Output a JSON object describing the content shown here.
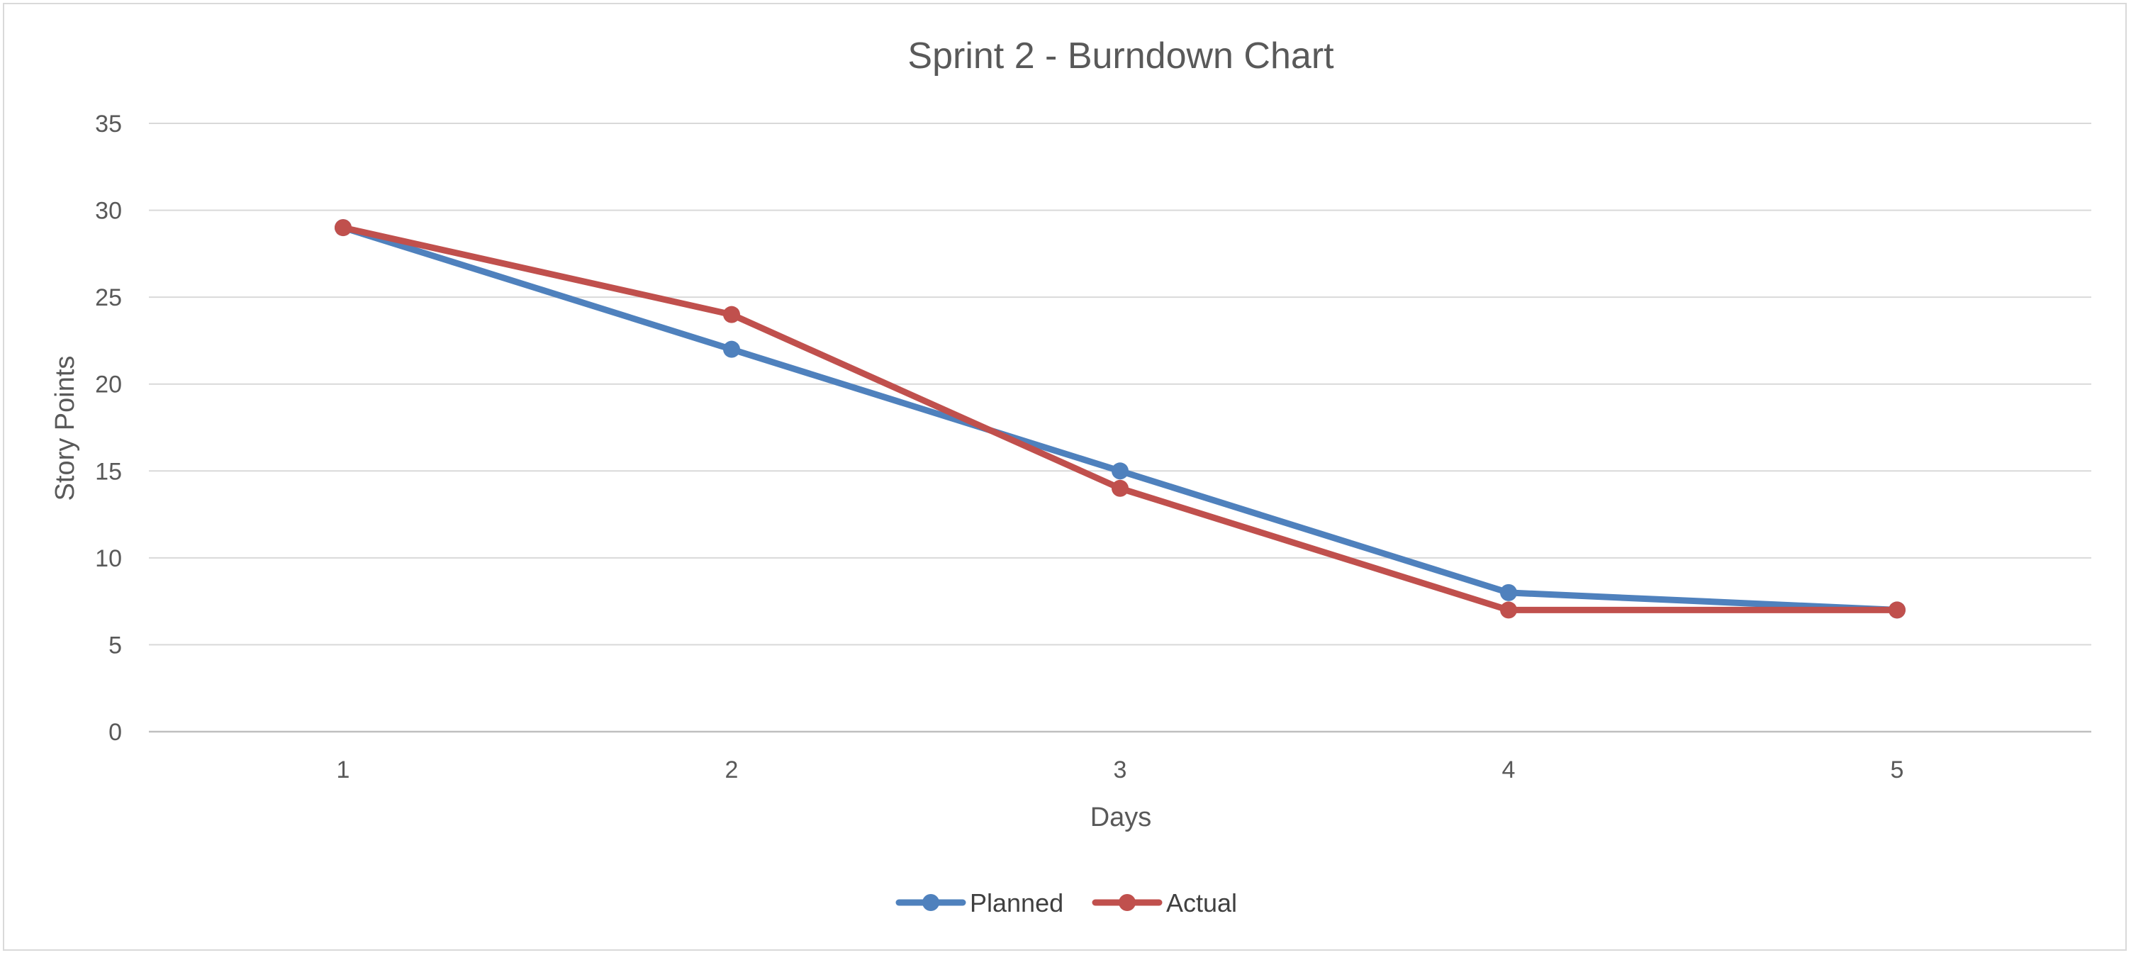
{
  "chart_data": {
    "type": "line",
    "title": "Sprint 2 - Burndown Chart",
    "xlabel": "Days",
    "ylabel": "Story Points",
    "categories": [
      "1",
      "2",
      "3",
      "4",
      "5"
    ],
    "ylim": [
      0,
      35
    ],
    "yticks": [
      0,
      5,
      10,
      15,
      20,
      25,
      30,
      35
    ],
    "grid": true,
    "legend_position": "bottom",
    "series": [
      {
        "name": "Planned",
        "values": [
          29,
          22,
          15,
          8,
          7
        ],
        "color": "#4f81bd"
      },
      {
        "name": "Actual",
        "values": [
          29,
          24,
          14,
          7,
          7
        ],
        "color": "#c0504d"
      }
    ]
  }
}
